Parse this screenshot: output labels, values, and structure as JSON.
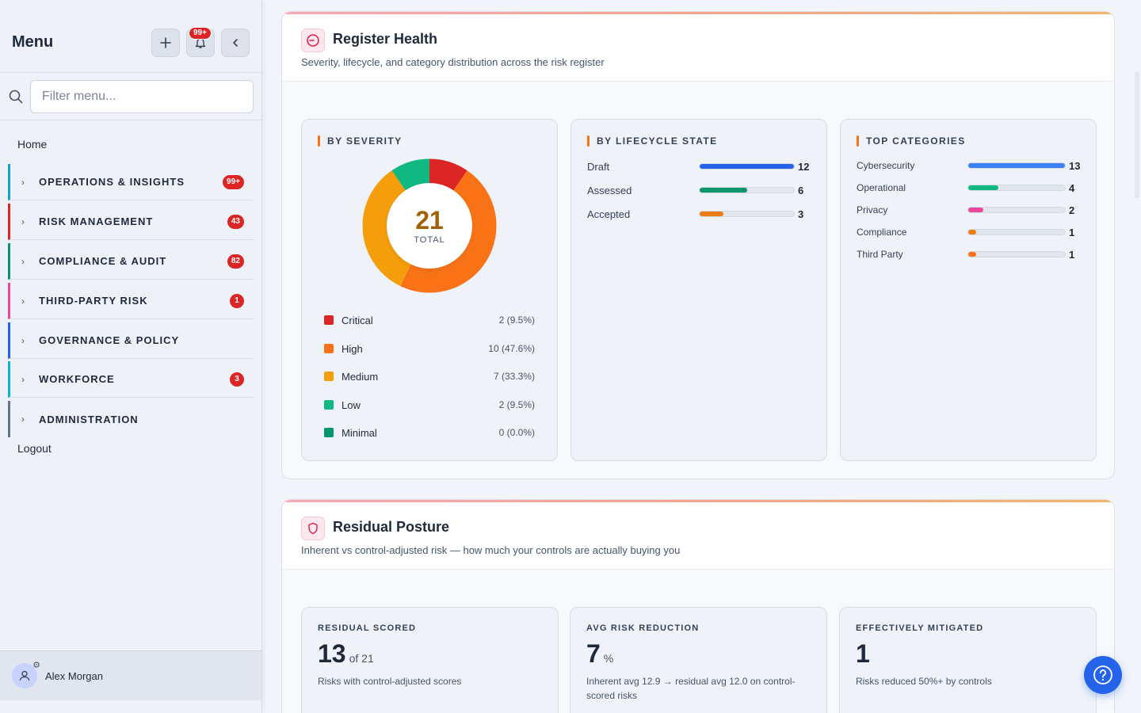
{
  "sidebar": {
    "title": "Menu",
    "notification_badge": "99+",
    "search_placeholder": "Filter menu...",
    "home": "Home",
    "groups": [
      {
        "label": "OPERATIONS & INSIGHTS",
        "badge": "99+",
        "color": "#0ea5c6"
      },
      {
        "label": "RISK MANAGEMENT",
        "badge": "43",
        "color": "#dc2626"
      },
      {
        "label": "COMPLIANCE & AUDIT",
        "badge": "82",
        "color": "#059669"
      },
      {
        "label": "THIRD-PARTY RISK",
        "badge": "1",
        "color": "#ec4899"
      },
      {
        "label": "GOVERNANCE & POLICY",
        "badge": "",
        "color": "#2563eb"
      },
      {
        "label": "WORKFORCE",
        "badge": "3",
        "color": "#06b6d4"
      },
      {
        "label": "ADMINISTRATION",
        "badge": "",
        "color": "#64748b"
      }
    ],
    "logout": "Logout",
    "user_name": "Alex Morgan"
  },
  "register_health": {
    "title": "Register Health",
    "subtitle": "Severity, lifecycle, and category distribution across the risk register",
    "severity": {
      "title": "BY SEVERITY",
      "total": "21",
      "total_label": "TOTAL",
      "items": [
        {
          "name": "Critical",
          "value": "2 (9.5%)",
          "count": 2,
          "color": "#dc2626"
        },
        {
          "name": "High",
          "value": "10 (47.6%)",
          "count": 10,
          "color": "#f97316"
        },
        {
          "name": "Medium",
          "value": "7 (33.3%)",
          "count": 7,
          "color": "#f59e0b"
        },
        {
          "name": "Low",
          "value": "2 (9.5%)",
          "count": 2,
          "color": "#10b981"
        },
        {
          "name": "Minimal",
          "value": "0 (0.0%)",
          "count": 0,
          "color": "#059669"
        }
      ]
    },
    "lifecycle": {
      "title": "BY LIFECYCLE STATE",
      "max": 12,
      "items": [
        {
          "name": "Draft",
          "count": "12",
          "value": 12,
          "color": "#2563eb"
        },
        {
          "name": "Assessed",
          "count": "6",
          "value": 6,
          "color": "#059669"
        },
        {
          "name": "Accepted",
          "count": "3",
          "value": 3,
          "color": "#ea7c12"
        }
      ]
    },
    "categories": {
      "title": "TOP CATEGORIES",
      "max": 13,
      "items": [
        {
          "name": "Cybersecurity",
          "count": "13",
          "value": 13,
          "color": "#3b82f6"
        },
        {
          "name": "Operational",
          "count": "4",
          "value": 4,
          "color": "#10b981"
        },
        {
          "name": "Privacy",
          "count": "2",
          "value": 2,
          "color": "#ec4899"
        },
        {
          "name": "Compliance",
          "count": "1",
          "value": 1,
          "color": "#ea7c12"
        },
        {
          "name": "Third Party",
          "count": "1",
          "value": 1,
          "color": "#f97316"
        }
      ]
    }
  },
  "residual_posture": {
    "title": "Residual Posture",
    "subtitle": "Inherent vs control-adjusted risk — how much your controls are actually buying you",
    "stats": [
      {
        "title": "RESIDUAL SCORED",
        "value": "13",
        "suffix": "of 21",
        "desc": "Risks with control-adjusted scores"
      },
      {
        "title": "AVG RISK REDUCTION",
        "value": "7",
        "suffix": "%",
        "desc": "Inherent avg 12.9 → residual avg 12.0 on control-scored risks"
      },
      {
        "title": "EFFECTIVELY MITIGATED",
        "value": "1",
        "suffix": "",
        "desc": "Risks reduced 50%+ by controls"
      }
    ]
  }
}
